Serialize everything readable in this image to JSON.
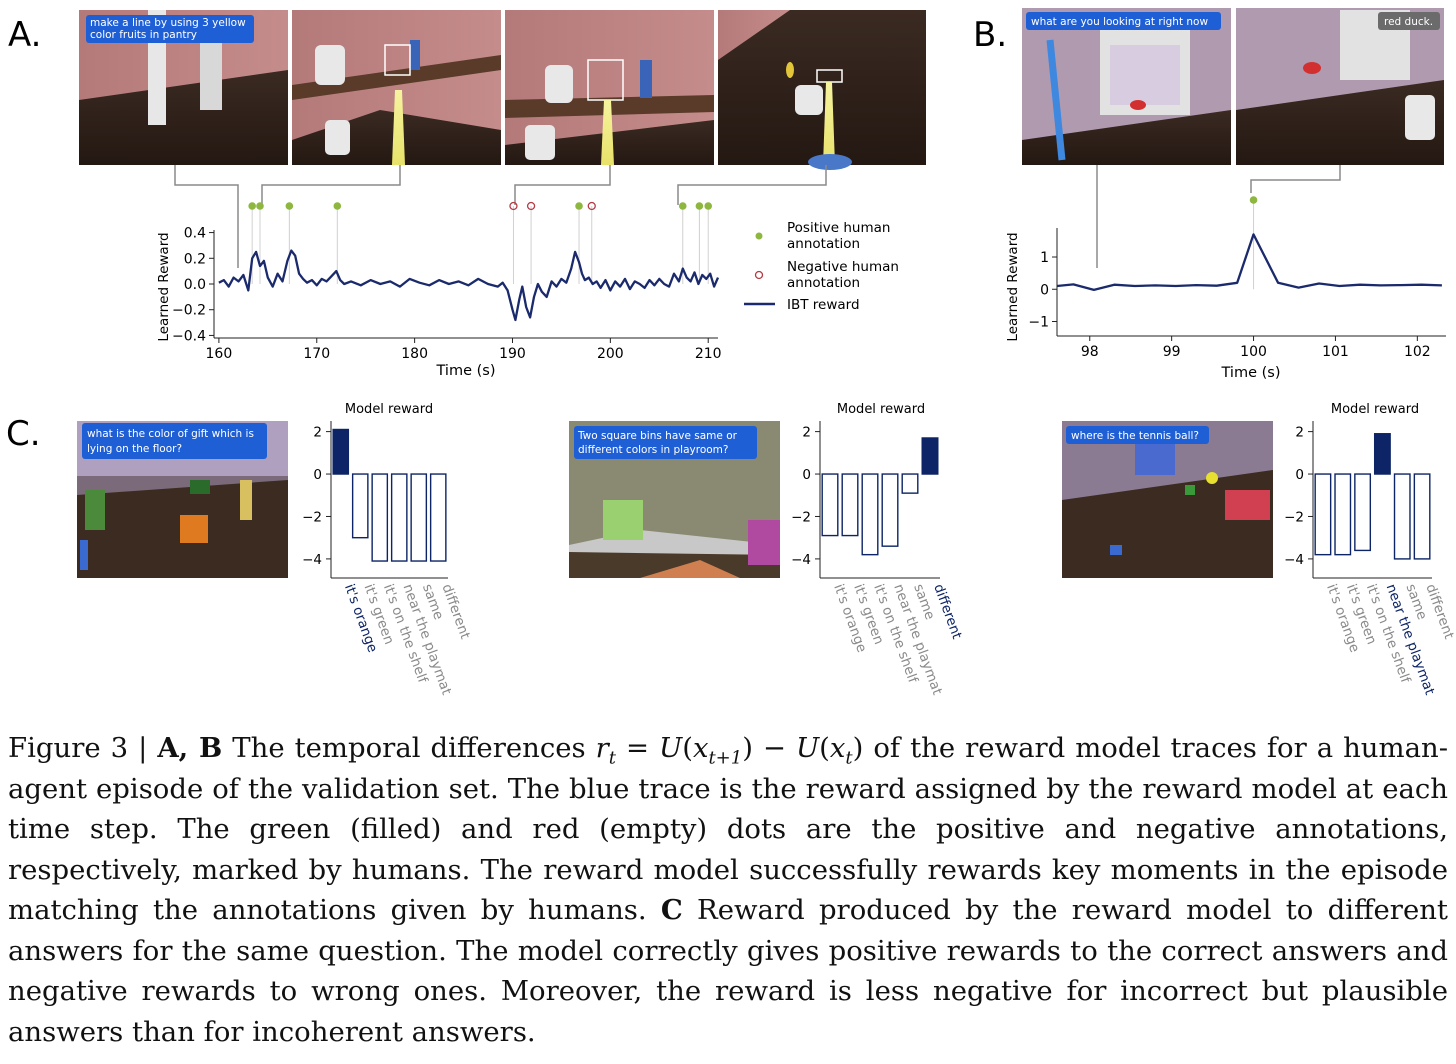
{
  "panels": {
    "A": {
      "label": "A.",
      "instruction": [
        "make a line by using 3 yellow",
        "color fruits in pantry"
      ]
    },
    "B": {
      "label": "B.",
      "question": "what are you looking at right now",
      "answer": "red duck."
    },
    "C": {
      "label": "C.",
      "questions": [
        [
          "what is the color of gift which is",
          "lying on the floor?"
        ],
        [
          "Two square bins have same or",
          "diﬀerent colors in playroom?"
        ],
        [
          "where is the tennis ball?"
        ]
      ]
    }
  },
  "colors": {
    "trace": "#1a2a6c",
    "positive": "#8db73f",
    "negative": "#b53a43",
    "selected": "#0d2566",
    "unselected": "#8a8a8a",
    "speech_bubble": "#1f5fd6",
    "answer_bubble": "#6b6b6b"
  },
  "chart_data": [
    {
      "id": "A",
      "type": "line",
      "xlabel": "Time (s)",
      "ylabel": "Learned Reward",
      "xlim": [
        159.5,
        211
      ],
      "ylim": [
        -0.42,
        0.42
      ],
      "xticks": [
        160,
        170,
        180,
        190,
        200,
        210
      ],
      "yticks": [
        -0.4,
        -0.2,
        0.0,
        0.2,
        0.4
      ],
      "ytick_labels": [
        "−0.4",
        "−0.2",
        "0.0",
        "0.2",
        "0.4"
      ],
      "legend": {
        "placement": "right",
        "entries": [
          {
            "kind": "positive",
            "label": [
              "Positive human",
              "annotation"
            ]
          },
          {
            "kind": "negative",
            "label": [
              "Negative human",
              "annotation"
            ]
          },
          {
            "kind": "line",
            "label": [
              "IBT reward"
            ]
          }
        ]
      },
      "positive_annotations": [
        163.4,
        164.2,
        167.2,
        172.1,
        196.8,
        207.4,
        209.1,
        210.0
      ],
      "negative_annotations": [
        190.1,
        191.9,
        198.1
      ],
      "series": [
        {
          "name": "IBT reward",
          "x": [
            160.0,
            160.5,
            161.0,
            161.5,
            162.0,
            162.5,
            163.0,
            163.4,
            163.8,
            164.2,
            164.6,
            165.0,
            165.5,
            166.0,
            166.5,
            167.0,
            167.4,
            167.8,
            168.2,
            168.6,
            169.0,
            169.5,
            170.0,
            170.5,
            171.0,
            171.5,
            172.0,
            172.4,
            172.8,
            173.5,
            174.5,
            175.5,
            176.5,
            177.5,
            178.5,
            179.5,
            180.5,
            181.5,
            182.5,
            183.5,
            184.5,
            185.5,
            186.5,
            187.5,
            188.5,
            189.0,
            189.5,
            190.0,
            190.3,
            190.7,
            191.0,
            191.4,
            191.8,
            192.2,
            192.6,
            193.0,
            193.5,
            194.0,
            194.5,
            195.0,
            195.5,
            196.0,
            196.4,
            196.8,
            197.1,
            197.4,
            197.8,
            198.2,
            198.6,
            199.0,
            199.5,
            200.0,
            200.5,
            201.0,
            201.5,
            202.0,
            202.5,
            203.0,
            203.5,
            204.0,
            204.5,
            205.0,
            205.5,
            206.0,
            206.5,
            207.0,
            207.4,
            207.8,
            208.2,
            208.6,
            209.0,
            209.4,
            209.8,
            210.2,
            210.6,
            211.0
          ],
          "y": [
            0.01,
            0.03,
            -0.02,
            0.05,
            0.02,
            0.07,
            -0.05,
            0.2,
            0.25,
            0.14,
            0.18,
            0.05,
            -0.02,
            0.08,
            0.02,
            0.18,
            0.26,
            0.22,
            0.08,
            0.04,
            0.01,
            0.03,
            -0.01,
            0.04,
            0.02,
            0.06,
            0.1,
            0.03,
            0.0,
            0.02,
            -0.01,
            0.03,
            0.0,
            0.02,
            -0.02,
            0.04,
            0.01,
            -0.01,
            0.03,
            0.0,
            0.02,
            -0.01,
            0.04,
            0.0,
            -0.02,
            0.01,
            -0.05,
            -0.2,
            -0.28,
            -0.12,
            -0.02,
            -0.18,
            -0.26,
            -0.1,
            0.0,
            -0.06,
            -0.1,
            0.02,
            -0.02,
            0.04,
            0.01,
            0.12,
            0.25,
            0.17,
            0.08,
            0.03,
            0.05,
            0.0,
            0.02,
            -0.03,
            0.03,
            -0.05,
            0.02,
            -0.02,
            0.04,
            -0.04,
            0.02,
            0.0,
            -0.03,
            0.03,
            -0.01,
            0.04,
            0.0,
            -0.02,
            0.08,
            0.02,
            0.12,
            0.05,
            0.02,
            0.09,
            0.0,
            0.07,
            0.04,
            0.08,
            -0.02,
            0.05
          ]
        }
      ]
    },
    {
      "id": "B",
      "type": "line",
      "xlabel": "Time (s)",
      "ylabel": "Learned Reward",
      "xlim": [
        97.6,
        102.35
      ],
      "ylim": [
        -1.45,
        1.9
      ],
      "xticks": [
        98,
        99,
        100,
        101,
        102
      ],
      "yticks": [
        -1,
        0,
        1
      ],
      "ytick_labels": [
        "−1",
        "0",
        "1"
      ],
      "positive_annotations": [
        100.0
      ],
      "series": [
        {
          "name": "",
          "x": [
            97.6,
            97.8,
            98.05,
            98.3,
            98.55,
            98.8,
            99.05,
            99.3,
            99.55,
            99.8,
            100.0,
            100.3,
            100.55,
            100.8,
            101.05,
            101.3,
            101.55,
            101.8,
            102.05,
            102.3
          ],
          "y": [
            0.1,
            0.15,
            -0.02,
            0.14,
            0.1,
            0.12,
            0.1,
            0.13,
            0.11,
            0.2,
            1.7,
            0.2,
            0.05,
            0.18,
            0.1,
            0.14,
            0.12,
            0.13,
            0.14,
            0.12
          ]
        }
      ]
    },
    {
      "id": "C1",
      "type": "bar",
      "title": "Model reward",
      "categories": [
        "it's orange",
        "it's green",
        "it's on the shelf",
        "near the playmat",
        "same",
        "different"
      ],
      "values": [
        2.1,
        -3.0,
        -4.1,
        -4.1,
        -4.1,
        -4.1
      ],
      "selected_index": 0,
      "ylim": [
        -4.9,
        2.5
      ],
      "yticks": [
        2,
        0,
        -2,
        -4
      ],
      "ytick_labels": [
        "2",
        "0",
        "−2",
        "−4"
      ]
    },
    {
      "id": "C2",
      "type": "bar",
      "title": "Model reward",
      "categories": [
        "it's orange",
        "it's green",
        "it's on the shelf",
        "near the playmat",
        "same",
        "different"
      ],
      "values": [
        -2.9,
        -2.9,
        -3.8,
        -3.4,
        -0.9,
        1.7
      ],
      "selected_index": 5,
      "ylim": [
        -4.9,
        2.5
      ],
      "yticks": [
        2,
        0,
        -2,
        -4
      ],
      "ytick_labels": [
        "2",
        "0",
        "−2",
        "−4"
      ]
    },
    {
      "id": "C3",
      "type": "bar",
      "title": "Model reward",
      "categories": [
        "it's orange",
        "it's green",
        "it's on the shelf",
        "near the playmat",
        "same",
        "different"
      ],
      "values": [
        -3.8,
        -3.8,
        -3.6,
        1.9,
        -4.0,
        -4.0
      ],
      "selected_index": 3,
      "ylim": [
        -4.9,
        2.5
      ],
      "yticks": [
        2,
        0,
        -2,
        -4
      ],
      "ytick_labels": [
        "2",
        "0",
        "−2",
        "−4"
      ]
    }
  ],
  "caption": {
    "figure_label": "Figure 3 | ",
    "ab_label": "A, B",
    "text1": " The temporal differences ",
    "r": "r",
    "t": "t",
    "eq": " = ",
    "U": "U",
    "x": "x",
    "tp1": "t+1",
    "minus": " − ",
    "text2": " of the reward model traces for a human-agent episode of the validation set. The blue trace is the reward assigned by the reward model at each time step. The green (filled) and red (empty) dots are the positive and negative annotations, respectively, marked by humans. The reward model successfully rewards key moments in the episode matching the annotations given by humans. ",
    "c_label": "C",
    "text3": " Reward produced by the reward model to different answers for the same question. The model correctly gives positive rewards to the correct answers and negative rewards to wrong ones. Moreover, the reward is less negative for incorrect but plausible answers than for incoherent answers."
  }
}
